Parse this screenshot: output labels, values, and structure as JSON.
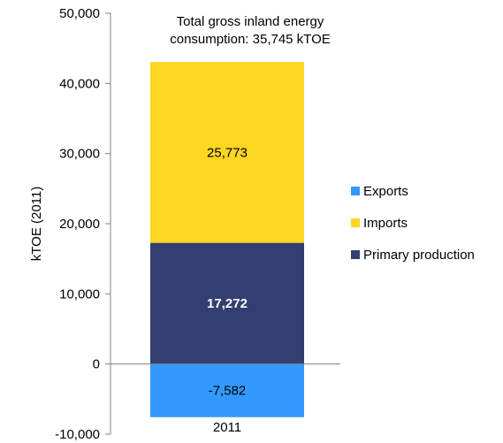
{
  "chart_data": {
    "type": "bar",
    "stacked": true,
    "categories": [
      "2011"
    ],
    "series": [
      {
        "name": "Exports",
        "values": [
          -7582
        ],
        "label": "-7,582",
        "color": "#3399ff",
        "label_color": "#000000",
        "label_bold": false
      },
      {
        "name": "Imports",
        "values": [
          25773
        ],
        "label": "25,773",
        "color": "#fdd523",
        "label_color": "#000000",
        "label_bold": false
      },
      {
        "name": "Primary production",
        "values": [
          17272
        ],
        "label": "17,272",
        "color": "#333f70",
        "label_color": "#ffffff",
        "label_bold": true
      }
    ],
    "stack_order": [
      "Exports",
      "Primary production",
      "Imports"
    ],
    "legend_order": [
      "Exports",
      "Imports",
      "Primary production"
    ],
    "annotation": [
      "Total gross inland energy",
      "consumption: 35,745 kTOE"
    ],
    "ylabel": "kTOE (2011)",
    "xlabel": "",
    "ylim": [
      -10000,
      50000
    ],
    "yticks": [
      -10000,
      0,
      10000,
      20000,
      30000,
      40000,
      50000
    ],
    "ytick_labels": [
      "-10,000",
      "0",
      "10,000",
      "20,000",
      "30,000",
      "40,000",
      "50,000"
    ],
    "grid": false,
    "legend_position": "right"
  }
}
